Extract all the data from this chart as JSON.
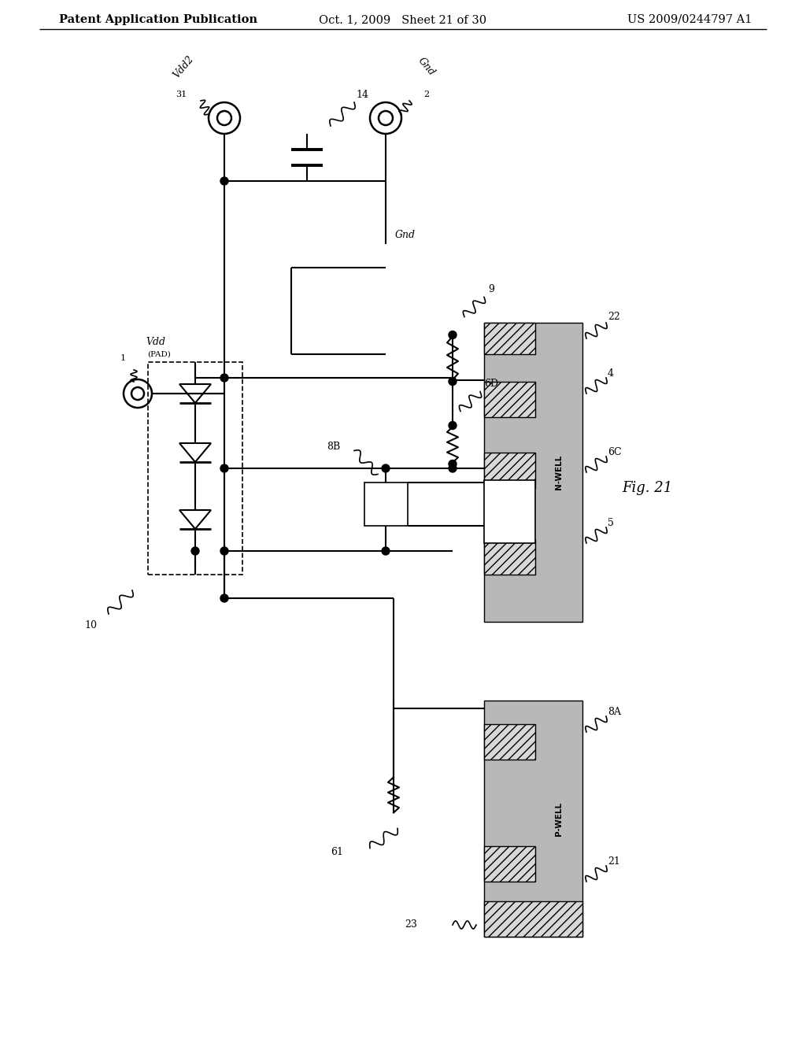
{
  "title_left": "Patent Application Publication",
  "title_center": "Oct. 1, 2009   Sheet 21 of 30",
  "title_right": "US 2009/0244797 A1",
  "fig_label": "Fig. 21",
  "bg_color": "#ffffff",
  "header_fontsize": 10.5,
  "fig_label_fontsize": 13
}
